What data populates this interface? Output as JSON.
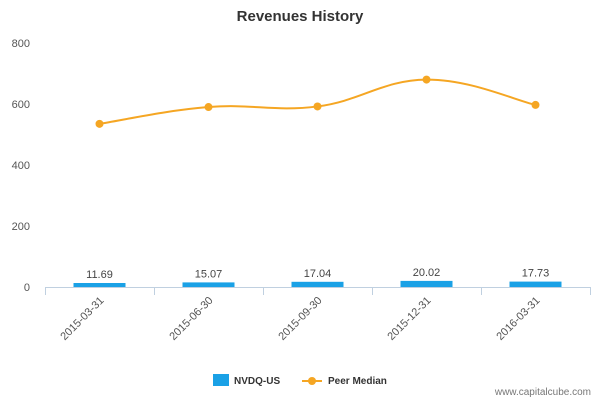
{
  "chart_data": {
    "type": "bar",
    "title": "Revenues History",
    "categories": [
      "2015-03-31",
      "2015-06-30",
      "2015-09-30",
      "2015-12-31",
      "2016-03-31"
    ],
    "series": [
      {
        "name": "NVDQ-US",
        "type": "bar",
        "color": "#1aa1e6",
        "values": [
          11.69,
          15.07,
          17.04,
          20.02,
          17.73
        ],
        "labels": [
          "11.69",
          "15.07",
          "17.04",
          "20.02",
          "17.73"
        ]
      },
      {
        "name": "Peer Median",
        "type": "line",
        "color": "#f5a623",
        "values": [
          535,
          590,
          592,
          680,
          597
        ]
      }
    ],
    "ylim": [
      0,
      800
    ],
    "yticks": [
      "0",
      "200",
      "400",
      "600",
      "800"
    ],
    "legend_position": "bottom-center"
  },
  "credit": "www.capitalcube.com"
}
